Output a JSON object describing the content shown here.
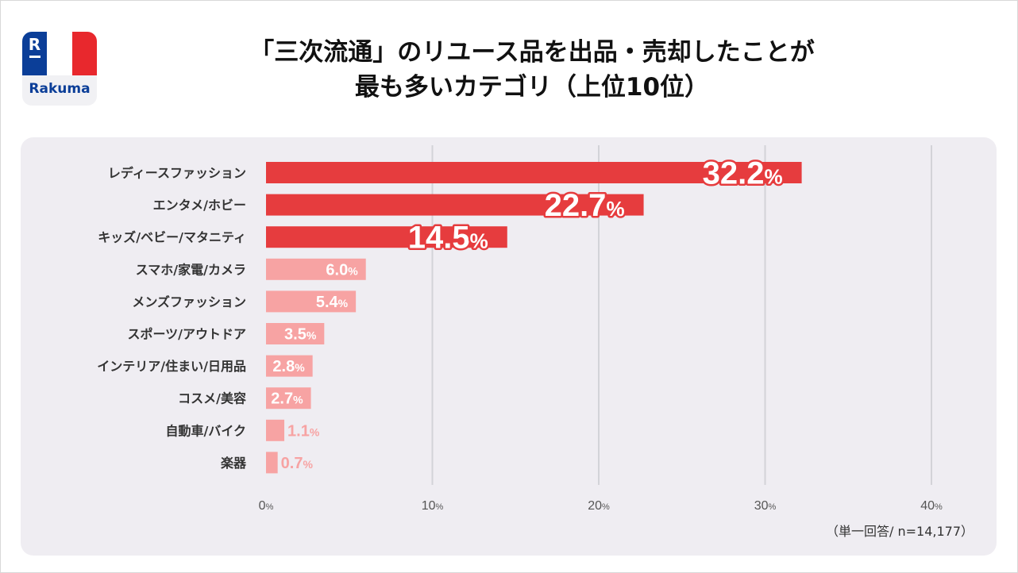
{
  "header": {
    "title_line1": "「三次流通」のリユース品を出品・売却したことが",
    "title_line2": "最も多いカテゴリ（上位10位）"
  },
  "logo": {
    "mark": "R",
    "name": "Rakuma",
    "colors": {
      "blue": "#0b3e98",
      "white": "#ffffff",
      "red": "#e8282d"
    }
  },
  "note": "（単一回答/ n=14,177）",
  "chart_data": {
    "type": "bar",
    "orientation": "horizontal",
    "categories": [
      "レディースファッション",
      "エンタメ/ホビー",
      "キッズ/ベビー/マタニティ",
      "スマホ/家電/カメラ",
      "メンズファッション",
      "スポーツ/アウトドア",
      "インテリア/住まい/日用品",
      "コスメ/美容",
      "自動車/バイク",
      "楽器"
    ],
    "values": [
      32.2,
      22.7,
      14.5,
      6.0,
      5.4,
      3.5,
      2.8,
      2.7,
      1.1,
      0.7
    ],
    "value_labels": [
      "32.2",
      "22.7",
      "14.5",
      "6.0",
      "5.4",
      "3.5",
      "2.8",
      "2.7",
      "1.1",
      "0.7"
    ],
    "value_suffix": "%",
    "xlim": [
      0,
      40
    ],
    "xticks": [
      0,
      10,
      20,
      30,
      40
    ],
    "xtick_labels": [
      "0",
      "10",
      "20",
      "30",
      "40"
    ],
    "tick_suffix": "%",
    "grid": true,
    "highlight_top_n": 3,
    "colors": {
      "highlight": "#e63c3e",
      "normal": "#f7a3a3",
      "label_dark": "#ffffff",
      "label_outline": "#e63c3e",
      "grid": "#d3d3d8",
      "tick_text": "#555555",
      "category_text": "#333333"
    }
  }
}
